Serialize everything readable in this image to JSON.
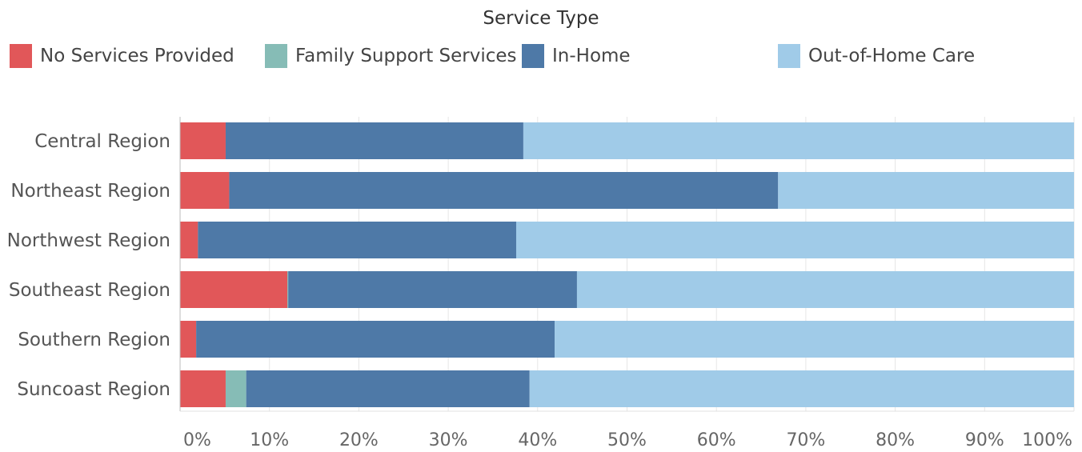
{
  "legend": {
    "title": "Service Type",
    "items": [
      {
        "label": "No Services Provided",
        "color": "#E15759"
      },
      {
        "label": "Family Support Services",
        "color": "#86BCB6"
      },
      {
        "label": "In-Home",
        "color": "#4E79A7"
      },
      {
        "label": "Out-of-Home Care",
        "color": "#A0CBE8"
      }
    ]
  },
  "chart_data": {
    "type": "bar",
    "orientation": "horizontal",
    "stacked": true,
    "normalized": true,
    "legend_title": "Service Type",
    "categories": [
      "Central Region",
      "Northeast Region",
      "Northwest Region",
      "Southeast Region",
      "Southern Region",
      "Suncoast Region"
    ],
    "series": [
      {
        "name": "No Services Provided",
        "color": "#E15759",
        "values": [
          5.1,
          5.5,
          2.0,
          12.0,
          1.8,
          5.1
        ]
      },
      {
        "name": "Family Support Services",
        "color": "#86BCB6",
        "values": [
          0.0,
          0.0,
          0.0,
          0.1,
          0.0,
          2.3
        ]
      },
      {
        "name": "In-Home",
        "color": "#4E79A7",
        "values": [
          33.3,
          61.4,
          35.6,
          32.3,
          40.1,
          31.7
        ]
      },
      {
        "name": "Out-of-Home Care",
        "color": "#A0CBE8",
        "values": [
          61.6,
          33.1,
          62.4,
          55.6,
          58.1,
          60.9
        ]
      }
    ],
    "x_ticks": [
      "0%",
      "10%",
      "20%",
      "30%",
      "40%",
      "50%",
      "60%",
      "70%",
      "80%",
      "90%",
      "100%"
    ],
    "xlim": [
      0,
      100
    ],
    "grid": true,
    "legend_position": "top"
  }
}
